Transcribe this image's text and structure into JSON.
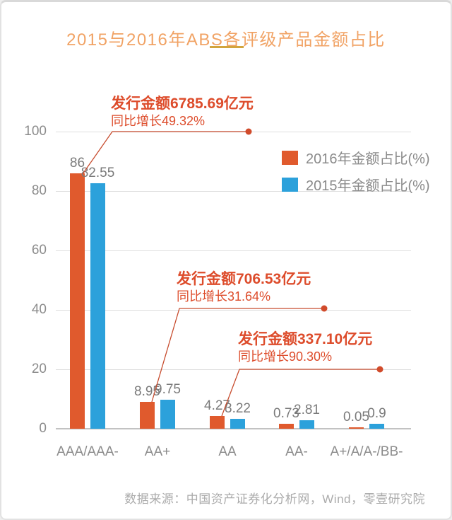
{
  "title": "2015与2016年ABS各评级产品金额占比",
  "footer": {
    "source": "数据来源：中国资产证券化分析网，Wind，零壹研究院"
  },
  "colors": {
    "series_2016": "#e05a2d",
    "series_2015": "#2ca1db",
    "annotation_text": "#dd4c2b",
    "leader_line": "#c74c2e",
    "title": "#f1a365",
    "title_underline": "#d2a43c",
    "axis_text": "#8c8c8c",
    "gridline": "#dedede"
  },
  "chart_data": {
    "type": "bar",
    "title": "2015与2016年ABS各评级产品金额占比",
    "categories": [
      "AAA/AAA-",
      "AA+",
      "AA",
      "AA-",
      "A+/A/A-/BB-"
    ],
    "series": [
      {
        "name": "2016年金额占比(%)",
        "color": "#e05a2d",
        "values": [
          86,
          8.95,
          4.27,
          0.73,
          0.05
        ]
      },
      {
        "name": "2015年金额占比(%)",
        "color": "#2ca1db",
        "values": [
          82.55,
          9.75,
          3.22,
          2.81,
          0.9
        ]
      }
    ],
    "xlabel": "",
    "ylabel": "",
    "ylim": [
      0,
      100
    ],
    "yticks": [
      0,
      20,
      40,
      60,
      80,
      100
    ],
    "grid": true,
    "legend_position": "top-right",
    "annotations": [
      {
        "line1": "发行金额6785.69亿元",
        "line2": "同比增长49.32%",
        "target_category": "AAA/AAA-"
      },
      {
        "line1": "发行金额706.53亿元",
        "line2": "同比增长31.64%",
        "target_category": "AA+"
      },
      {
        "line1": "发行金额337.10亿元",
        "line2": "同比增长90.30%",
        "target_category": "AA"
      }
    ]
  }
}
